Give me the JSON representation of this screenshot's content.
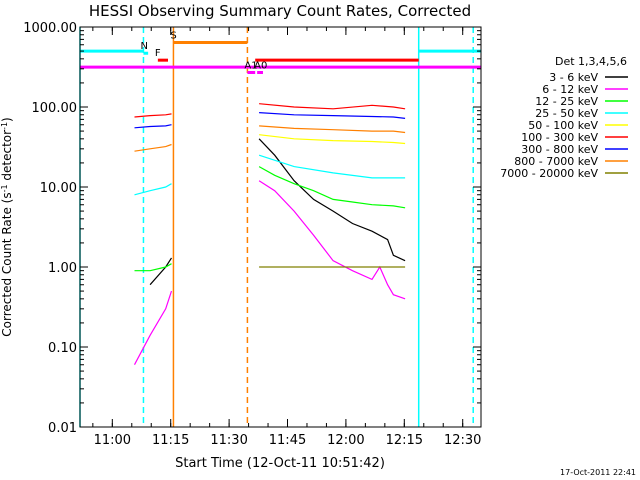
{
  "chart_data": {
    "type": "line",
    "title": "HESSI Observing Summary Count Rates, Corrected",
    "xlabel": "Start Time (12-Oct-11 10:51:42)",
    "ylabel": "Corrected Count Rate (s",
    "ylabel_sup1": "-1",
    "ylabel_mid": " detector",
    "ylabel_sup2": "-1",
    "ylabel_end": ")",
    "x_unit": "minutes after 10:51:42",
    "xlim": [
      0,
      103
    ],
    "ylim": [
      0.01,
      1000
    ],
    "y_scale": "log",
    "x_ticks": [
      {
        "v": 8.3,
        "label": "11:00"
      },
      {
        "v": 23.3,
        "label": "11:15"
      },
      {
        "v": 38.3,
        "label": "11:30"
      },
      {
        "v": 53.3,
        "label": "11:45"
      },
      {
        "v": 68.3,
        "label": "12:00"
      },
      {
        "v": 83.3,
        "label": "12:15"
      },
      {
        "v": 98.3,
        "label": "12:30"
      }
    ],
    "y_ticks": [
      {
        "v": 1000,
        "label": "1000.00"
      },
      {
        "v": 100,
        "label": "100.00"
      },
      {
        "v": 10,
        "label": "10.00"
      },
      {
        "v": 1,
        "label": "1.00"
      },
      {
        "v": 0.1,
        "label": "0.10"
      },
      {
        "v": 0.01,
        "label": "0.01"
      }
    ],
    "legend_title": "Det 1,3,4,5,6",
    "legend_position": "right",
    "series": [
      {
        "name": "3 - 6 keV",
        "color": "#000000",
        "x": [
          14,
          18,
          22,
          23.5,
          43,
          46,
          50,
          55,
          60,
          65,
          70,
          75,
          79,
          80.5,
          83.5
        ],
        "y": [
          null,
          0.6,
          1.0,
          1.3,
          null,
          40,
          25,
          12,
          7,
          5,
          3.5,
          2.8,
          2.2,
          1.4,
          1.2
        ]
      },
      {
        "name": "6 - 12 keV",
        "color": "#ff00ff",
        "x": [
          14,
          18,
          22,
          23.5,
          43,
          46,
          50,
          55,
          60,
          65,
          70,
          75,
          77,
          79,
          80.5,
          83.5
        ],
        "y": [
          0.06,
          0.14,
          0.3,
          0.5,
          null,
          12,
          9,
          5,
          2.5,
          1.2,
          0.9,
          0.7,
          1.0,
          0.6,
          0.45,
          0.4
        ]
      },
      {
        "name": "12 - 25 keV",
        "color": "#00ff00",
        "x": [
          14,
          18,
          22,
          23.5,
          43,
          46,
          50,
          55,
          60,
          65,
          70,
          75,
          80.5,
          83.5
        ],
        "y": [
          0.9,
          0.9,
          1.0,
          1.1,
          null,
          18,
          14,
          11,
          9,
          7,
          6.5,
          6,
          5.8,
          5.5
        ]
      },
      {
        "name": "25 - 50 keV",
        "color": "#00ffff",
        "x": [
          14,
          18,
          22,
          23.5,
          43,
          46,
          55,
          65,
          75,
          80.5,
          83.5
        ],
        "y": [
          8,
          9,
          10,
          11,
          null,
          25,
          18,
          15,
          13,
          13,
          13
        ]
      },
      {
        "name": "50 - 100 keV",
        "color": "#ffff00",
        "x": [
          43,
          46,
          55,
          65,
          75,
          80.5,
          83.5
        ],
        "y": [
          null,
          45,
          40,
          38,
          37,
          36,
          35
        ]
      },
      {
        "name": "100 - 300 keV",
        "color": "#ff0000",
        "x": [
          14,
          18,
          22,
          23.5,
          43,
          46,
          55,
          65,
          75,
          80.5,
          83.5
        ],
        "y": [
          75,
          78,
          80,
          82,
          null,
          110,
          100,
          95,
          105,
          100,
          95
        ]
      },
      {
        "name": "300 - 800 keV",
        "color": "#0000ff",
        "x": [
          14,
          18,
          22,
          23.5,
          43,
          46,
          55,
          65,
          75,
          80.5,
          83.5
        ],
        "y": [
          55,
          57,
          58,
          60,
          null,
          85,
          80,
          78,
          76,
          75,
          72
        ]
      },
      {
        "name": "800 - 7000 keV",
        "color": "#ff8000",
        "x": [
          14,
          18,
          22,
          23.5,
          43,
          46,
          55,
          65,
          75,
          80.5,
          83.5
        ],
        "y": [
          28,
          30,
          32,
          34,
          null,
          58,
          54,
          52,
          50,
          50,
          48
        ]
      },
      {
        "name": "7000 - 20000 keV",
        "color": "#808000",
        "x": [
          43,
          46,
          55,
          65,
          75,
          80.5,
          83.5
        ],
        "y": [
          null,
          1.0,
          1.0,
          1.0,
          1.0,
          1.0,
          1.0
        ]
      }
    ],
    "flag_bars": [
      {
        "label": "",
        "color": "#00ffff",
        "x": [
          0,
          16.3
        ],
        "y": 500
      },
      {
        "label": "",
        "color": "#00ffff",
        "x": [
          87,
          103
        ],
        "y": 500
      },
      {
        "label": "N",
        "color": "#00ffff",
        "x": [
          16.3,
          17.5
        ],
        "y": 470
      },
      {
        "label": "S",
        "color": "#ff8000",
        "x": [
          24,
          43
        ],
        "y": 640
      },
      {
        "label": "F",
        "color": "#ff0000",
        "x": [
          20,
          22.6
        ],
        "y": 385
      },
      {
        "label": "",
        "color": "#ff0000",
        "x": [
          45,
          87
        ],
        "y": 385
      },
      {
        "label": "",
        "color": "#ff00ff",
        "x": [
          0,
          103
        ],
        "y": 315
      },
      {
        "label": "A1",
        "color": "#ff00ff",
        "x": [
          43,
          45
        ],
        "y": 270
      },
      {
        "label": "A0",
        "color": "#ff00ff",
        "x": [
          45.5,
          47
        ],
        "y": 270
      }
    ],
    "vlines": [
      {
        "x": 0,
        "color": "#00ffff",
        "dash": "solid"
      },
      {
        "x": 16.3,
        "color": "#00ffff",
        "dash": "dashed"
      },
      {
        "x": 24,
        "color": "#ff8000",
        "dash": "solid"
      },
      {
        "x": 43,
        "color": "#ff8000",
        "dash": "dashed"
      },
      {
        "x": 87,
        "color": "#00ffff",
        "dash": "solid"
      },
      {
        "x": 101,
        "color": "#00ffff",
        "dash": "dashed"
      }
    ],
    "timestamp": "17-Oct-2011 22:41"
  }
}
